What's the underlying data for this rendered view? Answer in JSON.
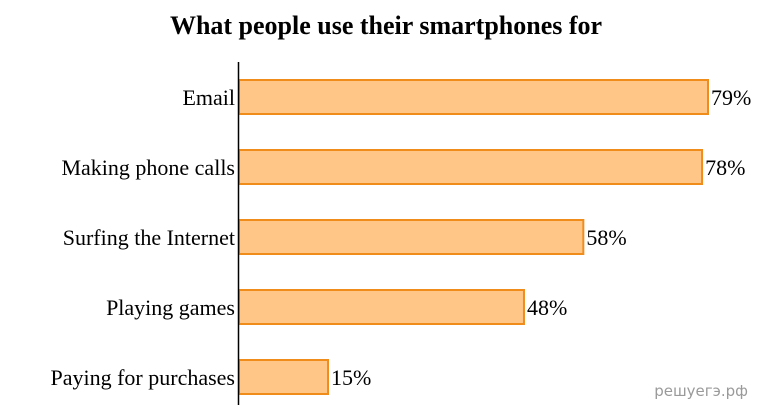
{
  "chart_data": {
    "type": "bar",
    "orientation": "horizontal",
    "title": "What people use their smartphones for",
    "categories": [
      "Email",
      "Making phone calls",
      "Surfing the Internet",
      "Playing games",
      "Paying for purchases"
    ],
    "values": [
      79,
      78,
      58,
      48,
      15
    ],
    "value_labels": [
      "79%",
      "78%",
      "58%",
      "48%",
      "15%"
    ],
    "unit": "%",
    "xlabel": "",
    "ylabel": "",
    "xlim": [
      0,
      79
    ],
    "grid": false,
    "legend": "none",
    "bar_fill": "#ffc688",
    "bar_stroke": "#f08c1a"
  },
  "watermark": "решуегэ.рф"
}
